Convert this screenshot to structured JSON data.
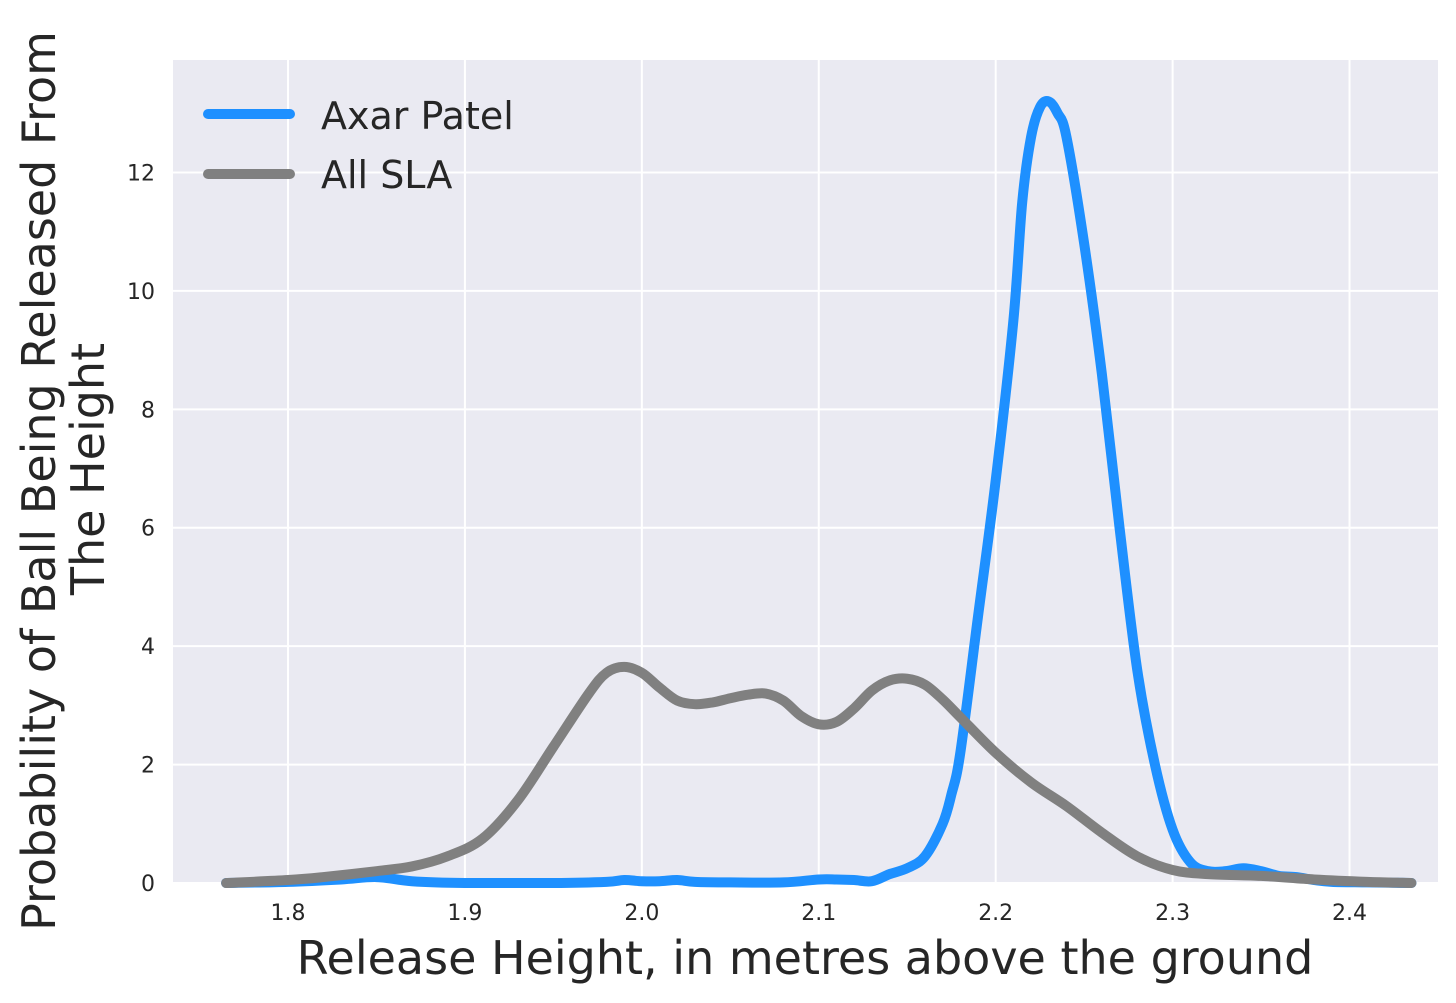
{
  "chart_data": {
    "type": "line",
    "title": "",
    "xlabel": "Release Height, in metres above the ground",
    "ylabel_lines": [
      "Probability of Ball Being Released From",
      "The Height"
    ],
    "xlim": [
      1.735,
      2.45
    ],
    "ylim": [
      0,
      13.9
    ],
    "x_ticks": [
      1.8,
      1.9,
      2.0,
      2.1,
      2.2,
      2.3,
      2.4
    ],
    "x_tick_labels": [
      "1.8",
      "1.9",
      "2.0",
      "2.1",
      "2.2",
      "2.3",
      "2.4"
    ],
    "y_ticks": [
      0,
      2,
      4,
      6,
      8,
      10,
      12
    ],
    "y_tick_labels": [
      "0",
      "2",
      "4",
      "6",
      "8",
      "10",
      "12"
    ],
    "grid": true,
    "legend_position": "top-left",
    "background_color": "#EAEAF2",
    "grid_color": "#FFFFFF",
    "series": [
      {
        "name": "Axar Patel",
        "color": "#1E90FF",
        "x": [
          1.765,
          1.8,
          1.83,
          1.85,
          1.87,
          1.9,
          1.95,
          1.98,
          1.99,
          2.0,
          2.01,
          2.02,
          2.03,
          2.05,
          2.08,
          2.1,
          2.11,
          2.12,
          2.13,
          2.14,
          2.15,
          2.16,
          2.17,
          2.175,
          2.18,
          2.19,
          2.2,
          2.21,
          2.215,
          2.22,
          2.225,
          2.23,
          2.235,
          2.24,
          2.25,
          2.26,
          2.27,
          2.28,
          2.29,
          2.3,
          2.31,
          2.32,
          2.33,
          2.34,
          2.35,
          2.36,
          2.37,
          2.38,
          2.39,
          2.41,
          2.435
        ],
        "y": [
          0,
          0.02,
          0.06,
          0.1,
          0.03,
          0,
          0,
          0.02,
          0.05,
          0.03,
          0.03,
          0.05,
          0.02,
          0.01,
          0.01,
          0.06,
          0.06,
          0.05,
          0.03,
          0.15,
          0.25,
          0.45,
          1.0,
          1.5,
          2.2,
          4.5,
          6.8,
          9.5,
          11.5,
          12.6,
          13.1,
          13.2,
          13.0,
          12.6,
          10.8,
          8.6,
          6.0,
          3.6,
          2.0,
          0.9,
          0.35,
          0.2,
          0.2,
          0.25,
          0.2,
          0.12,
          0.1,
          0.05,
          0.02,
          0.01,
          0
        ]
      },
      {
        "name": "All SLA",
        "color": "#808080",
        "x": [
          1.765,
          1.8,
          1.82,
          1.85,
          1.87,
          1.89,
          1.91,
          1.93,
          1.95,
          1.97,
          1.98,
          1.99,
          2.0,
          2.01,
          2.02,
          2.03,
          2.04,
          2.05,
          2.06,
          2.07,
          2.08,
          2.09,
          2.1,
          2.11,
          2.12,
          2.13,
          2.14,
          2.15,
          2.16,
          2.17,
          2.18,
          2.2,
          2.22,
          2.24,
          2.26,
          2.28,
          2.3,
          2.32,
          2.35,
          2.38,
          2.41,
          2.435
        ],
        "y": [
          0,
          0.05,
          0.1,
          0.2,
          0.28,
          0.45,
          0.75,
          1.4,
          2.3,
          3.2,
          3.55,
          3.65,
          3.55,
          3.3,
          3.08,
          3.02,
          3.05,
          3.12,
          3.18,
          3.2,
          3.08,
          2.82,
          2.68,
          2.72,
          2.95,
          3.25,
          3.42,
          3.45,
          3.35,
          3.1,
          2.8,
          2.2,
          1.7,
          1.3,
          0.85,
          0.45,
          0.22,
          0.15,
          0.12,
          0.06,
          0.02,
          0
        ]
      }
    ]
  }
}
